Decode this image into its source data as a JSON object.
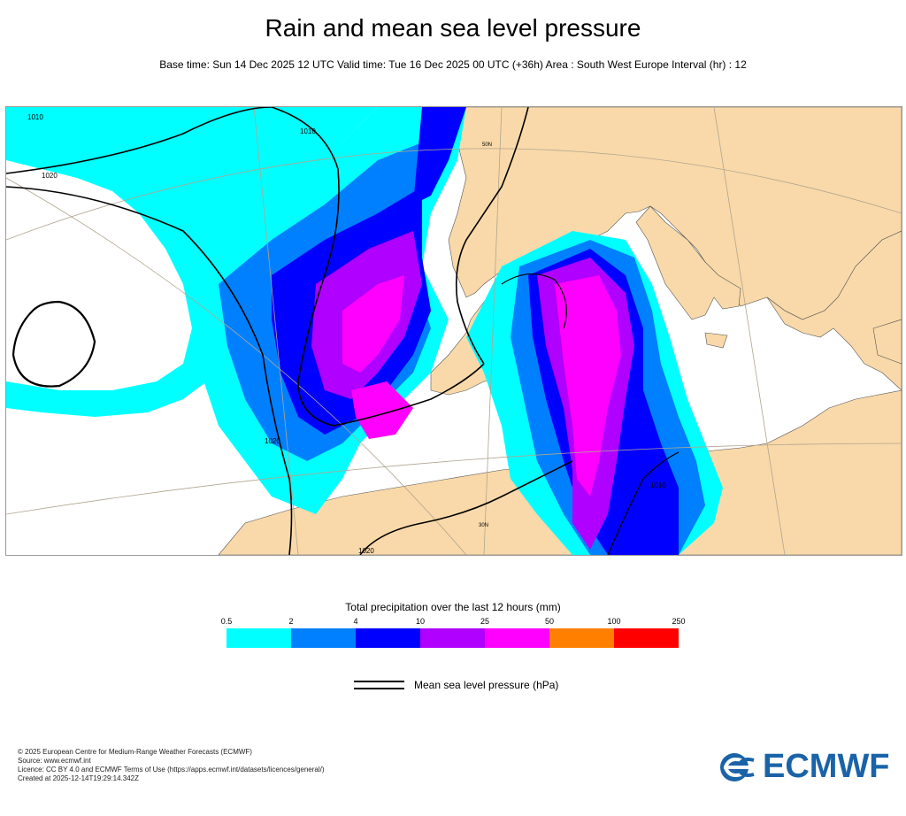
{
  "header": {
    "title": "Rain and mean sea level pressure",
    "subtitle": "Base time: Sun 14 Dec 2025 12 UTC Valid time: Tue 16 Dec 2025 00 UTC (+36h) Area : South West Europe Interval (hr) : 12"
  },
  "map": {
    "colors": {
      "land": "#f9d9a9",
      "sea": "#ffffff",
      "isobar": "#000000"
    },
    "isobar_labels": [
      "1010",
      "1010",
      "1020",
      "1020",
      "1020",
      "1010"
    ],
    "lat_labels": [
      "50N",
      "30N"
    ]
  },
  "legend": {
    "title": "Total precipitation over the last 12 hours (mm)",
    "ticks": [
      "0.5",
      "2",
      "4",
      "10",
      "25",
      "50",
      "100",
      "250"
    ],
    "colors": [
      "#00ffff",
      "#0080ff",
      "#0000ff",
      "#b000ff",
      "#ff00ff",
      "#ff8000",
      "#ff0000"
    ],
    "msl_label": "Mean sea level pressure (hPa)"
  },
  "footer": {
    "lines": [
      "© 2025 European Centre for Medium-Range Weather Forecasts (ECMWF)",
      "Source: www.ecmwf.int",
      "Licence: CC BY 4.0 and ECMWF Terms of Use (https://apps.ecmwf.int/datasets/licences/general/)",
      "Created at 2025-12-14T19:29:14.342Z"
    ],
    "logo_text": "ECMWF",
    "logo_icon": "ecmwf-logo-icon"
  }
}
